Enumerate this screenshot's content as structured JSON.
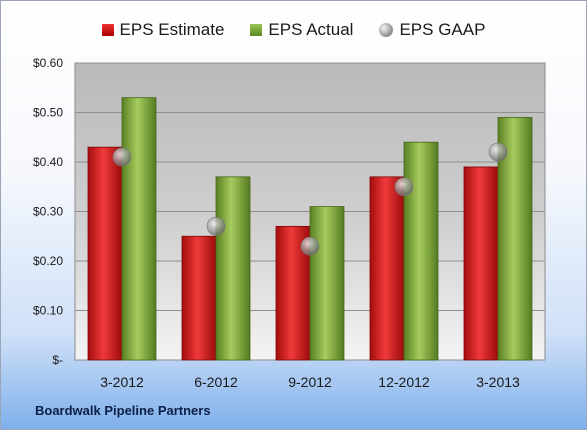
{
  "company": "Boardwalk Pipeline Partners",
  "colors": {
    "estimate": "#cc1f1f",
    "actual": "#7ba33a",
    "gaap": "#9a9a9a"
  },
  "chart_data": {
    "type": "bar",
    "title": "",
    "xlabel": "",
    "ylabel": "",
    "categories": [
      "3-2012",
      "6-2012",
      "9-2012",
      "12-2012",
      "3-2013"
    ],
    "series": [
      {
        "name": "EPS Estimate",
        "type": "bar",
        "values": [
          0.43,
          0.25,
          0.27,
          0.37,
          0.39
        ]
      },
      {
        "name": "EPS Actual",
        "type": "bar",
        "values": [
          0.53,
          0.37,
          0.31,
          0.44,
          0.49
        ]
      },
      {
        "name": "EPS GAAP",
        "type": "scatter",
        "values": [
          0.41,
          0.27,
          0.23,
          0.35,
          0.42
        ]
      }
    ],
    "ylim": [
      0,
      0.6
    ],
    "yticks": [
      0,
      0.1,
      0.2,
      0.3,
      0.4,
      0.5,
      0.6
    ],
    "ytick_labels": [
      "$-",
      "$0.10",
      "$0.20",
      "$0.30",
      "$0.40",
      "$0.50",
      "$0.60"
    ],
    "grid": true,
    "legend": "top"
  }
}
